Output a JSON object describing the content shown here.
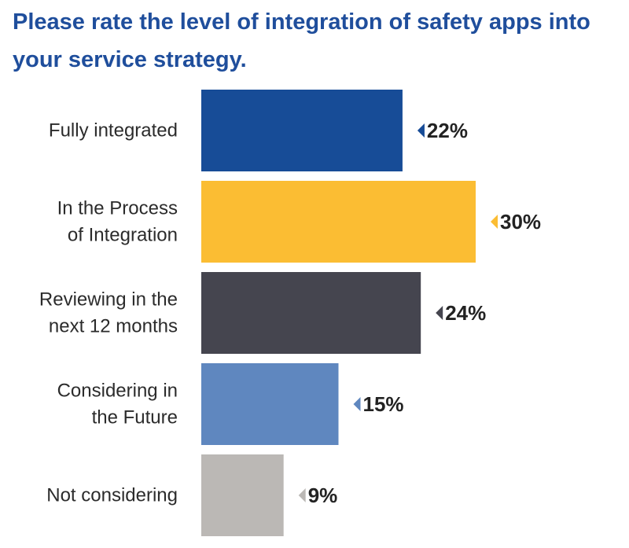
{
  "chart_data": {
    "type": "bar",
    "orientation": "horizontal",
    "title": "Please rate the level of integration of safety apps into your service strategy.",
    "categories": [
      [
        "Fully integrated"
      ],
      [
        "In the Process",
        "of Integration"
      ],
      [
        "Reviewing in the",
        "next 12 months"
      ],
      [
        "Considering in",
        "the Future"
      ],
      [
        "Not considering"
      ]
    ],
    "values": [
      22,
      30,
      24,
      15,
      9
    ],
    "value_labels": [
      "22%",
      "30%",
      "24%",
      "15%",
      "9%"
    ],
    "colors": [
      "#174c97",
      "#fbbd33",
      "#45454f",
      "#5f87bf",
      "#bbb8b5"
    ],
    "unit": "%",
    "grid": false,
    "legend": "none"
  }
}
